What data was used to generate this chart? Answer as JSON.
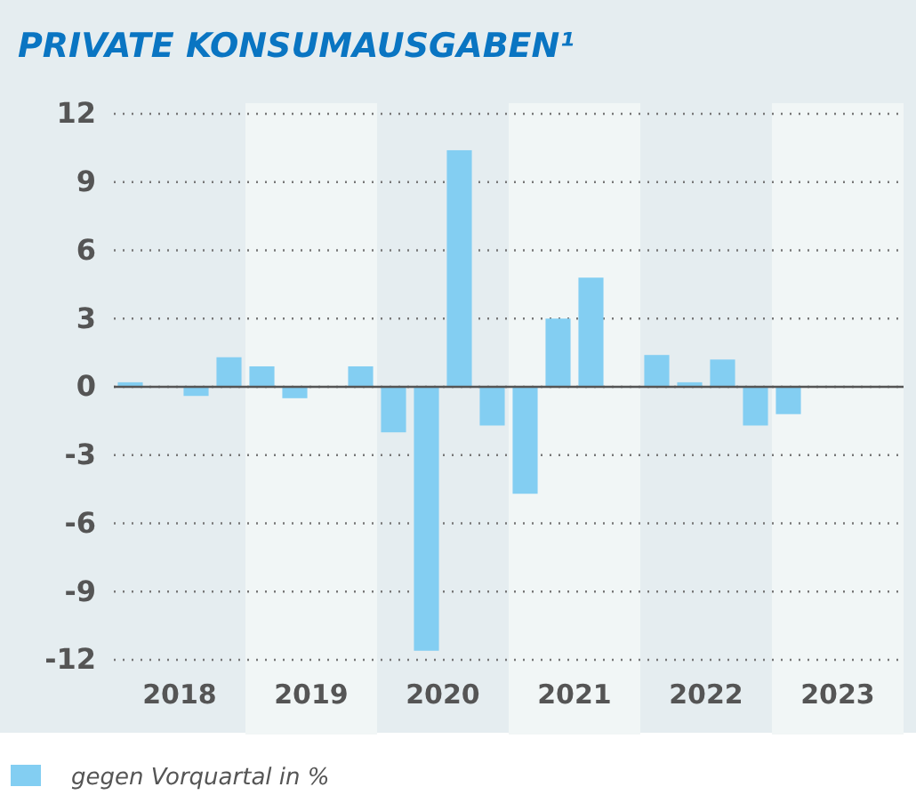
{
  "chart_data": {
    "type": "bar",
    "title": "PRIVATE KONSUMAUSGABEN¹",
    "x": [
      2018.125,
      2018.625,
      2018.875,
      2019.125,
      2019.375,
      2019.875,
      2020.125,
      2020.375,
      2020.625,
      2020.875,
      2021.125,
      2021.375,
      2021.625,
      2022.125,
      2022.375,
      2022.625,
      2022.875,
      2023.125
    ],
    "series": [
      {
        "name": "gegen Vorquartal in %",
        "color": "#83cef2",
        "values": [
          0.2,
          -0.4,
          1.3,
          0.9,
          -0.5,
          0.9,
          -2.0,
          -11.6,
          10.4,
          -1.7,
          -4.7,
          3.0,
          4.8,
          1.4,
          0.2,
          1.2,
          -1.7,
          -1.2
        ]
      }
    ],
    "xlim": [
      2018,
      2024
    ],
    "xticks": [
      {
        "value": 2018.5,
        "label": "2018"
      },
      {
        "value": 2019.5,
        "label": "2019"
      },
      {
        "value": 2020.5,
        "label": "2020"
      },
      {
        "value": 2021.5,
        "label": "2021"
      },
      {
        "value": 2022.5,
        "label": "2022"
      },
      {
        "value": 2023.5,
        "label": "2023"
      }
    ],
    "ylim": [
      -12,
      12
    ],
    "yticks": [
      -12,
      -9,
      -6,
      -3,
      0,
      3,
      6,
      9,
      12
    ],
    "grid": "y",
    "legend": "bottom left",
    "bands": [
      {
        "axis": "x",
        "from": 2019,
        "to": 2020,
        "color": "#f1f6f6"
      },
      {
        "axis": "x",
        "from": 2021,
        "to": 2022,
        "color": "#f1f6f6"
      },
      {
        "axis": "x",
        "from": 2023,
        "to": 2024,
        "color": "#f1f6f6"
      }
    ]
  }
}
